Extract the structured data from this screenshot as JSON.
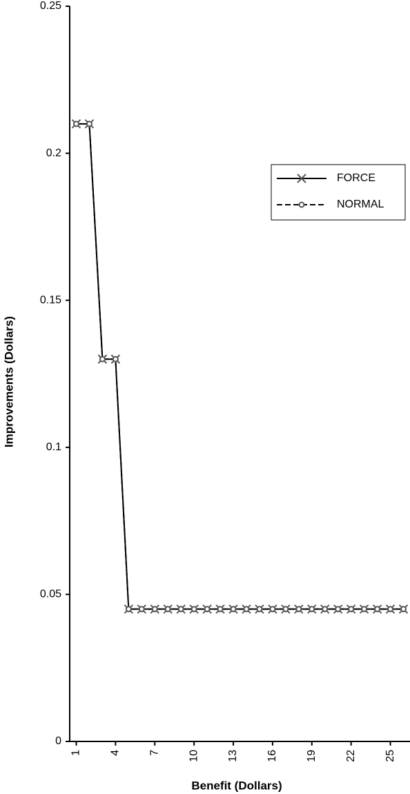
{
  "chart_data": {
    "type": "line",
    "x_label": "Benefit (Dollars)",
    "y_label": "Improvements (Dollars)",
    "x": [
      1,
      2,
      3,
      4,
      5,
      6,
      7,
      8,
      9,
      10,
      11,
      12,
      13,
      14,
      15,
      16,
      17,
      18,
      19,
      20,
      21,
      22,
      23,
      24,
      25,
      26
    ],
    "xlim": [
      0.5,
      26.5
    ],
    "xticks": [
      1,
      4,
      7,
      10,
      13,
      16,
      19,
      22,
      25
    ],
    "ylim": [
      0,
      0.25
    ],
    "yticks": [
      0,
      0.05,
      0.1,
      0.15,
      0.2,
      0.25
    ],
    "legend": "right",
    "series": [
      {
        "name": "FORCE",
        "color": "#000000",
        "marker_color": "#555555",
        "line_style": "solid",
        "marker": "x",
        "values": [
          0.21,
          0.21,
          0.13,
          0.13,
          0.045,
          0.045,
          0.045,
          0.045,
          0.045,
          0.045,
          0.045,
          0.045,
          0.045,
          0.045,
          0.045,
          0.045,
          0.045,
          0.045,
          0.045,
          0.045,
          0.045,
          0.045,
          0.045,
          0.045,
          0.045,
          0.045
        ]
      },
      {
        "name": "NORMAL",
        "color": "#000000",
        "marker_color": "#555555",
        "line_style": "dashed",
        "marker": "circle",
        "values": [
          0.21,
          0.21,
          0.13,
          0.13,
          0.045,
          0.045,
          0.045,
          0.045,
          0.045,
          0.045,
          0.045,
          0.045,
          0.045,
          0.045,
          0.045,
          0.045,
          0.045,
          0.045,
          0.045,
          0.045,
          0.045,
          0.045,
          0.045,
          0.045,
          0.045,
          0.045
        ]
      }
    ]
  }
}
